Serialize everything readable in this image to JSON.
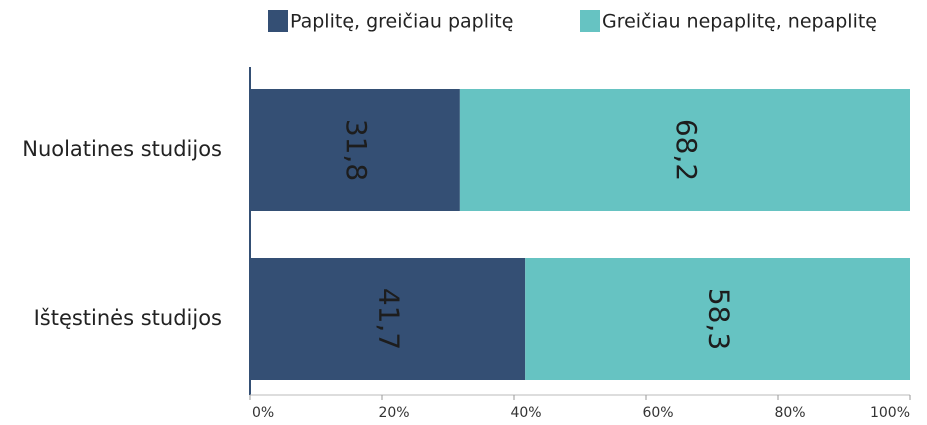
{
  "chart_data": {
    "type": "stacked_bar_horizontal",
    "categories": [
      "Nuolatines studijos",
      "Ištęstinės studijos"
    ],
    "series": [
      {
        "name": "Paplitę, greičiau paplitę",
        "color": "#344f74",
        "values": [
          31.8,
          41.7
        ],
        "value_labels": [
          "31,8",
          "41,7"
        ]
      },
      {
        "name": "Greičiau nepaplitę, nepaplitę",
        "color": "#66c3c2",
        "values": [
          68.2,
          58.3
        ],
        "value_labels": [
          "68,2",
          "58,3"
        ]
      }
    ],
    "xlim": [
      0,
      100
    ],
    "xticks": [
      {
        "value": 0,
        "label": "0%"
      },
      {
        "value": 20,
        "label": "20%"
      },
      {
        "value": 40,
        "label": "40%"
      },
      {
        "value": 60,
        "label": "60%"
      },
      {
        "value": 80,
        "label": "80%"
      },
      {
        "value": 100,
        "label": "100%"
      }
    ],
    "legend": "top"
  }
}
